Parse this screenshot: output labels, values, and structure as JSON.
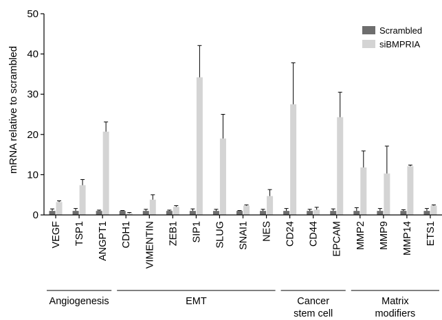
{
  "chart_data": {
    "type": "bar",
    "title": "",
    "xlabel": "",
    "ylabel": "mRNA relative to scrambled",
    "ylim": [
      0,
      50
    ],
    "yticks": [
      0,
      10,
      20,
      30,
      40,
      50
    ],
    "grid": false,
    "legend_position": "top-right",
    "categories": [
      "VEGF",
      "TSP1",
      "ANGPT1",
      "CDH1",
      "VIMENTIN",
      "ZEB1",
      "SIP1",
      "SLUG",
      "SNAI1",
      "NES",
      "CD24",
      "CD44",
      "EPCAM",
      "MMP2",
      "MMP9",
      "MMP14",
      "ETS1"
    ],
    "series": [
      {
        "name": "Scrambled",
        "color": "#6e6e6e",
        "values": [
          1.0,
          1.0,
          1.0,
          1.0,
          1.0,
          1.0,
          1.0,
          1.0,
          1.0,
          1.0,
          1.0,
          1.0,
          1.0,
          1.0,
          1.0,
          1.0,
          1.0
        ],
        "errors": [
          0.5,
          0.6,
          0.2,
          0.1,
          0.4,
          0.2,
          0.5,
          0.4,
          0.1,
          0.4,
          0.6,
          0.4,
          0.5,
          0.8,
          0.6,
          0.3,
          0.6
        ]
      },
      {
        "name": "siBMPRIA",
        "color": "#d4d4d4",
        "values": [
          3.2,
          7.4,
          20.7,
          0.4,
          3.8,
          2.0,
          34.2,
          19.0,
          2.3,
          4.7,
          27.5,
          1.3,
          24.3,
          11.8,
          10.3,
          12.1,
          2.3
        ],
        "errors": [
          0.3,
          1.4,
          2.4,
          0.2,
          1.2,
          0.3,
          7.9,
          6.0,
          0.2,
          1.6,
          10.3,
          0.6,
          6.2,
          4.1,
          6.8,
          0.3,
          0.2
        ]
      }
    ],
    "groups": [
      {
        "label_lines": [
          "Angiogenesis"
        ],
        "from": 0,
        "to": 2
      },
      {
        "label_lines": [
          "EMT"
        ],
        "from": 3,
        "to": 9
      },
      {
        "label_lines": [
          "Cancer",
          "stem cell"
        ],
        "from": 10,
        "to": 12
      },
      {
        "label_lines": [
          "Matrix",
          "modifiers"
        ],
        "from": 13,
        "to": 16
      }
    ]
  }
}
